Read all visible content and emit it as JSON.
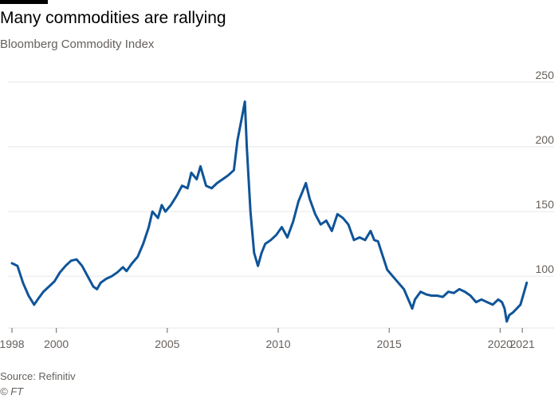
{
  "header": {
    "title": "Many commodities are rallying",
    "subtitle": "Bloomberg Commodity Index"
  },
  "footer": {
    "source": "Source: Refinitiv",
    "credit": "© FT"
  },
  "colors": {
    "line": "#0f5499",
    "grid": "#e6e6e6",
    "axis": "#66605c",
    "bar": "#000000"
  },
  "chart_data": {
    "type": "line",
    "title": "Many commodities are rallying",
    "subtitle": "Bloomberg Commodity Index",
    "xlabel": "",
    "ylabel": "",
    "xlim": [
      "1998-01-01",
      "2021-03-31"
    ],
    "ylim": [
      60,
      250
    ],
    "y_ticks": [
      100,
      150,
      200,
      250
    ],
    "x_ticks": [
      {
        "date": "1998-01-01",
        "label": "1998"
      },
      {
        "date": "2000-01-01",
        "label": "2000"
      },
      {
        "date": "2005-01-01",
        "label": "2005"
      },
      {
        "date": "2010-01-01",
        "label": "2010"
      },
      {
        "date": "2015-01-01",
        "label": "2015"
      },
      {
        "date": "2020-01-01",
        "label": "2020"
      },
      {
        "date": "2021-01-01",
        "label": "2021"
      }
    ],
    "grid": "horizontal",
    "y_axis_side": "right",
    "series": [
      {
        "x": [
          "1998-01-01",
          "1998-04-01",
          "1998-07-01",
          "1998-10-01",
          "1999-01-01",
          "1999-03-01",
          "1999-06-01",
          "1999-09-01",
          "1999-12-01",
          "2000-03-01",
          "2000-06-01",
          "2000-09-01",
          "2000-12-01",
          "2001-03-01",
          "2001-06-01",
          "2001-09-01",
          "2001-11-01",
          "2002-01-01",
          "2002-04-01",
          "2002-07-01",
          "2002-10-01",
          "2003-01-01",
          "2003-03-01",
          "2003-06-01",
          "2003-09-01",
          "2003-12-01",
          "2004-03-01",
          "2004-05-01",
          "2004-08-01",
          "2004-10-01",
          "2004-12-01",
          "2005-03-01",
          "2005-06-01",
          "2005-09-01",
          "2005-12-01",
          "2006-02-01",
          "2006-05-01",
          "2006-07-01",
          "2006-10-01",
          "2007-01-01",
          "2007-04-01",
          "2007-07-01",
          "2007-10-01",
          "2008-01-01",
          "2008-03-01",
          "2008-05-01",
          "2008-07-01",
          "2008-08-01",
          "2008-10-01",
          "2008-12-01",
          "2009-02-01",
          "2009-04-01",
          "2009-06-01",
          "2009-09-01",
          "2009-12-01",
          "2010-03-01",
          "2010-06-01",
          "2010-09-01",
          "2010-12-01",
          "2011-02-01",
          "2011-04-01",
          "2011-06-01",
          "2011-09-01",
          "2011-12-01",
          "2012-03-01",
          "2012-06-01",
          "2012-09-01",
          "2012-12-01",
          "2013-03-01",
          "2013-06-01",
          "2013-09-01",
          "2013-12-01",
          "2014-03-01",
          "2014-05-01",
          "2014-07-01",
          "2014-09-01",
          "2014-12-01",
          "2015-03-01",
          "2015-06-01",
          "2015-09-01",
          "2015-12-01",
          "2016-01-15",
          "2016-03-01",
          "2016-06-01",
          "2016-09-01",
          "2016-12-01",
          "2017-03-01",
          "2017-06-01",
          "2017-09-01",
          "2017-12-01",
          "2018-03-01",
          "2018-06-01",
          "2018-09-01",
          "2018-12-01",
          "2019-03-01",
          "2019-06-01",
          "2019-09-01",
          "2019-12-01",
          "2020-02-01",
          "2020-03-15",
          "2020-04-20",
          "2020-06-01",
          "2020-08-01",
          "2020-10-01",
          "2020-12-01",
          "2021-02-01",
          "2021-03-15"
        ],
        "values": [
          110,
          108,
          95,
          85,
          78,
          82,
          88,
          92,
          96,
          103,
          108,
          112,
          113,
          108,
          100,
          92,
          90,
          95,
          98,
          100,
          103,
          107,
          104,
          110,
          115,
          125,
          138,
          150,
          145,
          155,
          150,
          155,
          162,
          170,
          168,
          180,
          175,
          185,
          170,
          168,
          172,
          175,
          178,
          182,
          205,
          220,
          235,
          200,
          150,
          118,
          108,
          118,
          125,
          128,
          132,
          138,
          130,
          142,
          158,
          165,
          172,
          160,
          148,
          140,
          143,
          135,
          148,
          145,
          140,
          128,
          130,
          128,
          135,
          128,
          127,
          118,
          105,
          100,
          95,
          90,
          80,
          75,
          82,
          88,
          86,
          85,
          85,
          84,
          88,
          87,
          90,
          88,
          85,
          80,
          82,
          80,
          78,
          82,
          80,
          75,
          65,
          70,
          72,
          75,
          78,
          88,
          95
        ]
      }
    ]
  }
}
